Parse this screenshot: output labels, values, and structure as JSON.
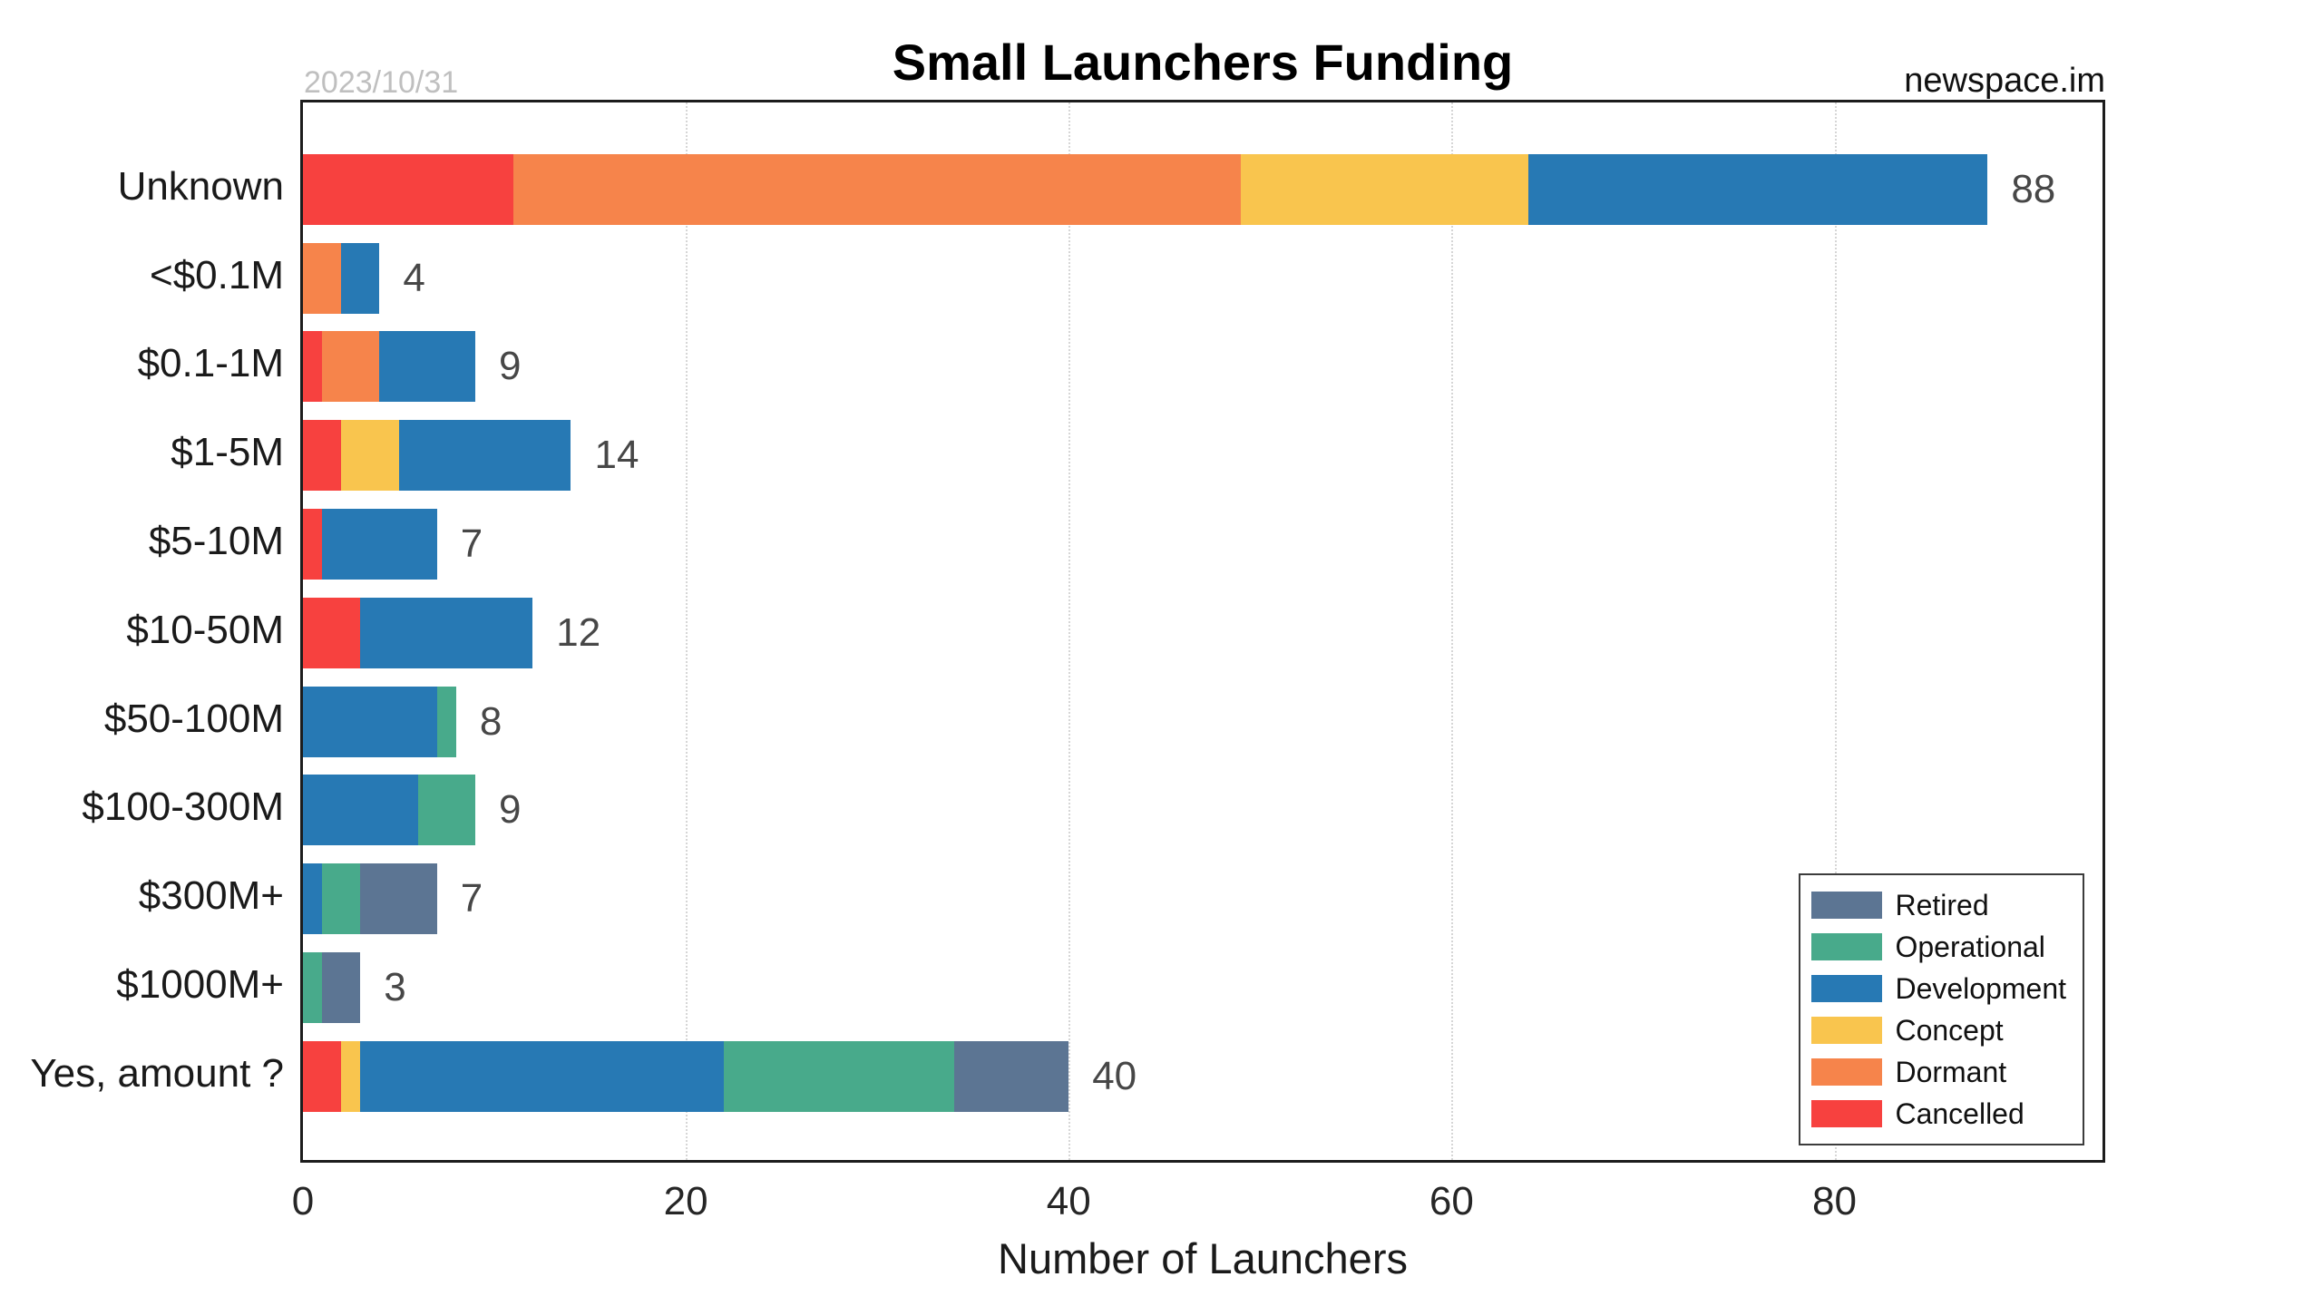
{
  "header": {
    "date": "2023/10/31",
    "source": "newspace.im"
  },
  "chart_data": {
    "type": "bar",
    "orientation": "horizontal",
    "stacked": true,
    "title": "Small Launchers Funding",
    "xlabel": "Number of Launchers",
    "categories": [
      "Unknown",
      "<$0.1M",
      "$0.1-1M",
      "$1-5M",
      "$5-10M",
      "$10-50M",
      "$50-100M",
      "$100-300M",
      "$300M+",
      "$1000M+",
      "Yes, amount ?"
    ],
    "series": [
      {
        "name": "Cancelled",
        "color": "#f7413f",
        "values": [
          11,
          0,
          1,
          2,
          1,
          3,
          0,
          0,
          0,
          0,
          2
        ]
      },
      {
        "name": "Dormant",
        "color": "#f6844b",
        "values": [
          38,
          2,
          3,
          0,
          0,
          0,
          0,
          0,
          0,
          0,
          0
        ]
      },
      {
        "name": "Concept",
        "color": "#f9c54e",
        "values": [
          15,
          0,
          0,
          3,
          0,
          0,
          0,
          0,
          0,
          0,
          1
        ]
      },
      {
        "name": "Development",
        "color": "#2779b4",
        "values": [
          24,
          2,
          5,
          9,
          6,
          9,
          7,
          6,
          1,
          0,
          19
        ]
      },
      {
        "name": "Operational",
        "color": "#48aa8b",
        "values": [
          0,
          0,
          0,
          0,
          0,
          0,
          1,
          3,
          2,
          1,
          12
        ]
      },
      {
        "name": "Retired",
        "color": "#5c7593",
        "values": [
          0,
          0,
          0,
          0,
          0,
          0,
          0,
          0,
          4,
          2,
          6
        ]
      }
    ],
    "totals": [
      88,
      4,
      9,
      14,
      7,
      12,
      8,
      9,
      7,
      3,
      40
    ],
    "xlim": [
      0,
      94
    ],
    "xticks": [
      0,
      20,
      40,
      60,
      80
    ],
    "grid": "vertical-dotted",
    "legend": {
      "position": "bottom-right",
      "entries": [
        "Retired",
        "Operational",
        "Development",
        "Concept",
        "Dormant",
        "Cancelled"
      ]
    },
    "colors": {
      "grid": "#d6d6d6",
      "axis_border": "#1c1c1c",
      "value_label": "#474747",
      "date_label": "#bfbfbf"
    }
  }
}
